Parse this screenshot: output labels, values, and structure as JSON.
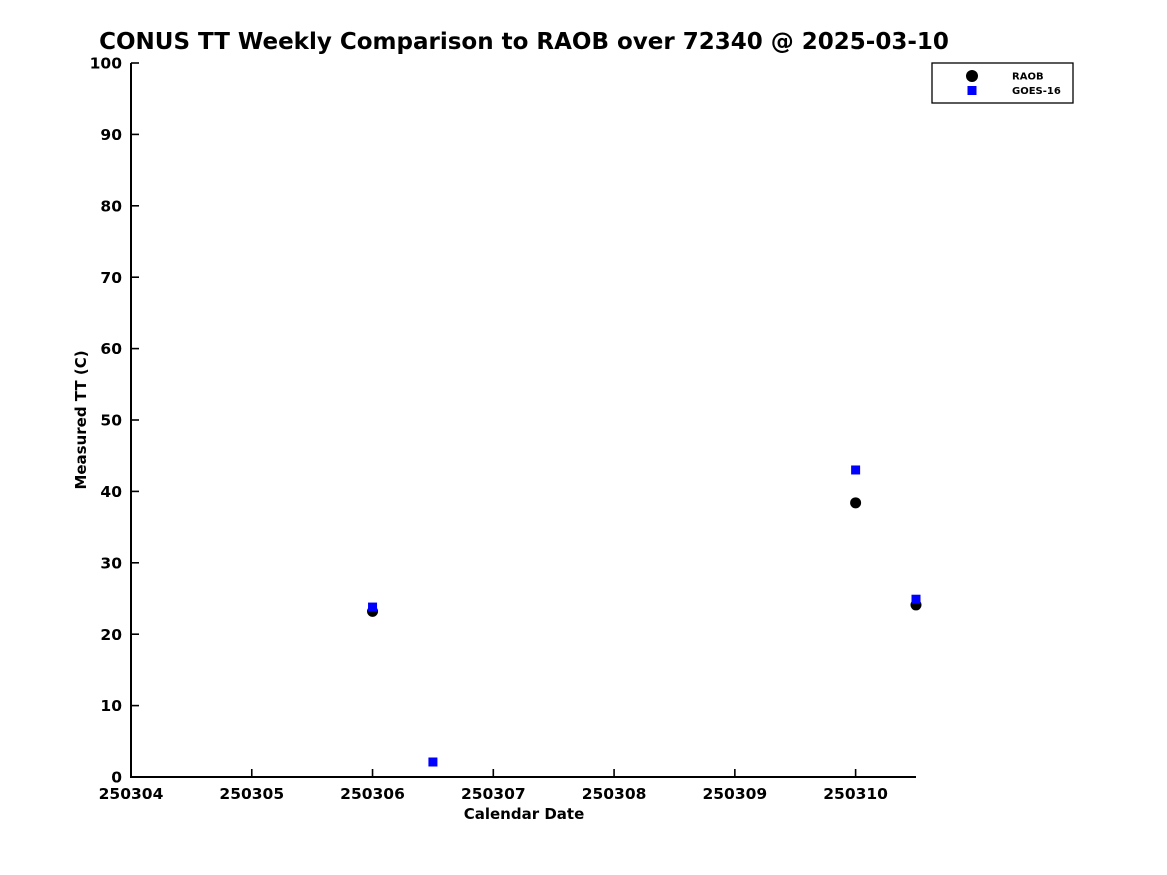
{
  "chart_data": {
    "type": "scatter",
    "title": "CONUS TT Weekly Comparison to RAOB over 72340 @ 2025-03-10",
    "xlabel": "Calendar Date",
    "ylabel": "Measured TT (C)",
    "xlim": [
      250304,
      250310.5
    ],
    "ylim": [
      0,
      100
    ],
    "x_ticks": [
      250304,
      250305,
      250306,
      250307,
      250308,
      250309,
      250310
    ],
    "y_ticks": [
      0,
      10,
      20,
      30,
      40,
      50,
      60,
      70,
      80,
      90,
      100
    ],
    "grid": false,
    "legend_position": "top-right",
    "series": [
      {
        "name": "RAOB",
        "marker": "circle",
        "color": "#000000",
        "points": [
          [
            250306,
            23.2
          ],
          [
            250310,
            38.4
          ],
          [
            250310.5,
            24.1
          ]
        ]
      },
      {
        "name": "GOES-16",
        "marker": "square",
        "color": "#0000ff",
        "points": [
          [
            250306,
            23.8
          ],
          [
            250306.5,
            2.1
          ],
          [
            250310,
            43.0
          ],
          [
            250310.5,
            24.9
          ]
        ]
      }
    ]
  }
}
